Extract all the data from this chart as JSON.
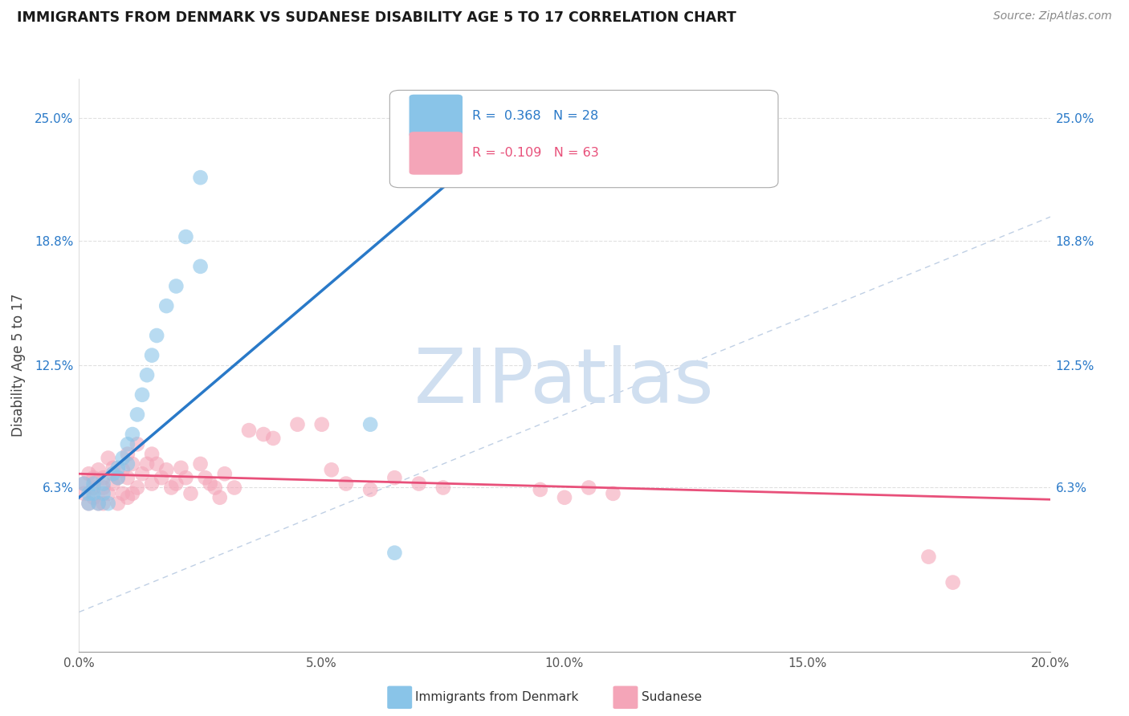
{
  "title": "IMMIGRANTS FROM DENMARK VS SUDANESE DISABILITY AGE 5 TO 17 CORRELATION CHART",
  "source": "Source: ZipAtlas.com",
  "ylabel": "Disability Age 5 to 17",
  "xlim": [
    0.0,
    0.2
  ],
  "ylim": [
    -0.02,
    0.27
  ],
  "xtick_labels": [
    "0.0%",
    "",
    "5.0%",
    "",
    "10.0%",
    "",
    "15.0%",
    "",
    "20.0%"
  ],
  "xtick_vals": [
    0.0,
    0.025,
    0.05,
    0.075,
    0.1,
    0.125,
    0.15,
    0.175,
    0.2
  ],
  "ytick_labels": [
    "6.3%",
    "12.5%",
    "18.8%",
    "25.0%"
  ],
  "ytick_vals": [
    0.063,
    0.125,
    0.188,
    0.25
  ],
  "legend_blue_r": "0.368",
  "legend_blue_n": "28",
  "legend_pink_r": "-0.109",
  "legend_pink_n": "63",
  "blue_scatter_color": "#89c4e8",
  "pink_scatter_color": "#f4a5b8",
  "blue_line_color": "#2979c8",
  "pink_line_color": "#e8507a",
  "diagonal_color": "#b0c4de",
  "watermark_text": "ZIPatlas",
  "watermark_color": "#d0dff0",
  "background_color": "#ffffff",
  "grid_color": "#e0e0e0",
  "blue_x": [
    0.001,
    0.002,
    0.002,
    0.003,
    0.003,
    0.004,
    0.005,
    0.005,
    0.006,
    0.007,
    0.008,
    0.008,
    0.009,
    0.01,
    0.01,
    0.011,
    0.012,
    0.013,
    0.014,
    0.015,
    0.016,
    0.018,
    0.02,
    0.022,
    0.025,
    0.025,
    0.06,
    0.065
  ],
  "blue_y": [
    0.065,
    0.06,
    0.055,
    0.065,
    0.06,
    0.055,
    0.065,
    0.06,
    0.055,
    0.07,
    0.073,
    0.068,
    0.078,
    0.085,
    0.075,
    0.09,
    0.1,
    0.11,
    0.12,
    0.13,
    0.14,
    0.155,
    0.165,
    0.19,
    0.175,
    0.22,
    0.095,
    0.03
  ],
  "pink_x": [
    0.001,
    0.001,
    0.002,
    0.002,
    0.003,
    0.003,
    0.003,
    0.004,
    0.004,
    0.005,
    0.005,
    0.005,
    0.006,
    0.006,
    0.007,
    0.007,
    0.008,
    0.008,
    0.009,
    0.009,
    0.01,
    0.01,
    0.01,
    0.011,
    0.011,
    0.012,
    0.012,
    0.013,
    0.014,
    0.015,
    0.015,
    0.016,
    0.017,
    0.018,
    0.019,
    0.02,
    0.021,
    0.022,
    0.023,
    0.025,
    0.026,
    0.027,
    0.028,
    0.029,
    0.03,
    0.032,
    0.035,
    0.038,
    0.04,
    0.045,
    0.05,
    0.052,
    0.055,
    0.06,
    0.065,
    0.07,
    0.075,
    0.095,
    0.1,
    0.105,
    0.11,
    0.175,
    0.18
  ],
  "pink_y": [
    0.065,
    0.06,
    0.07,
    0.055,
    0.068,
    0.063,
    0.058,
    0.072,
    0.055,
    0.068,
    0.063,
    0.055,
    0.078,
    0.06,
    0.073,
    0.065,
    0.068,
    0.055,
    0.072,
    0.06,
    0.08,
    0.068,
    0.058,
    0.075,
    0.06,
    0.085,
    0.063,
    0.07,
    0.075,
    0.08,
    0.065,
    0.075,
    0.068,
    0.072,
    0.063,
    0.065,
    0.073,
    0.068,
    0.06,
    0.075,
    0.068,
    0.065,
    0.063,
    0.058,
    0.07,
    0.063,
    0.092,
    0.09,
    0.088,
    0.095,
    0.095,
    0.072,
    0.065,
    0.062,
    0.068,
    0.065,
    0.063,
    0.062,
    0.058,
    0.063,
    0.06,
    0.028,
    0.015
  ],
  "blue_trend_x": [
    0.0,
    0.075
  ],
  "blue_trend_y": [
    0.058,
    0.215
  ],
  "pink_trend_x": [
    0.0,
    0.2
  ],
  "pink_trend_y": [
    0.07,
    0.057
  ]
}
